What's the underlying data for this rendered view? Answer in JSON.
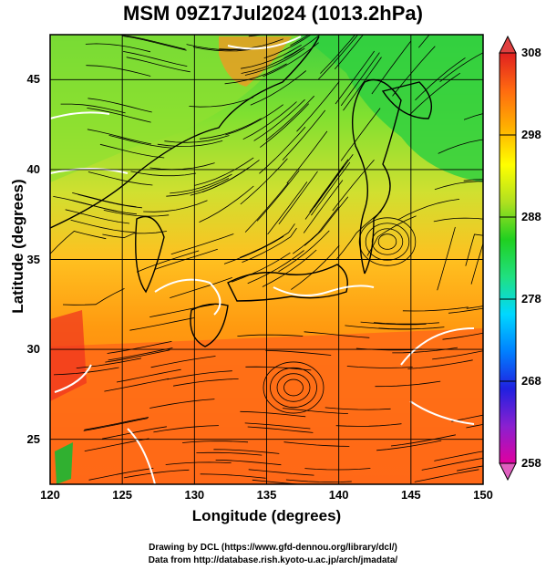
{
  "title": "MSM 09Z17Jul2024 (1013.2hPa)",
  "axes": {
    "xlabel": "Longitude (degrees)",
    "ylabel": "Latitude  (degrees)",
    "x_ticks": [
      "120",
      "125",
      "130",
      "135",
      "140",
      "145",
      "150"
    ],
    "y_ticks": [
      "25",
      "30",
      "35",
      "40",
      "45"
    ],
    "xlim": [
      120,
      150
    ],
    "ylim": [
      22.5,
      47.5
    ]
  },
  "colorbar": {
    "ticks": [
      "308",
      "298",
      "288",
      "278",
      "268",
      "258"
    ],
    "range": [
      258,
      308
    ],
    "colors": [
      "#e0009f",
      "#8a20d0",
      "#2020e0",
      "#0080ff",
      "#00d8ff",
      "#20e080",
      "#20d020",
      "#b0e020",
      "#ffff00",
      "#ffb000",
      "#ff6a10",
      "#e02020"
    ]
  },
  "credits": {
    "line1": "Drawing by DCL (https://www.gfd-dennou.org/library/dcl/)",
    "line2": "Data from http://database.rish.kyoto-u.ac.jp/arch/jmadata/"
  },
  "palette": {
    "ocean_warm": "#ff7a1a",
    "ocean_mid": "#ffa000",
    "yellow": "#ffe040",
    "green": "#40e040",
    "isotherm": "#ffffff"
  }
}
